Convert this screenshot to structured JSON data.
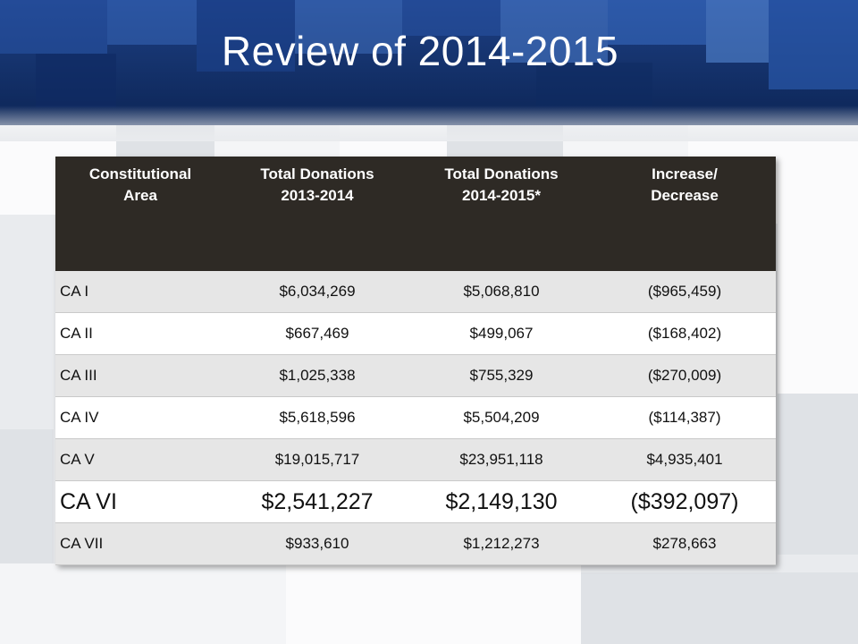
{
  "slide": {
    "title": "Review of 2014-2015"
  },
  "table": {
    "headers": [
      [
        "Constitutional",
        "Area"
      ],
      [
        "Total Donations",
        "2013-2014"
      ],
      [
        "Total Donations",
        "2014-2015*"
      ],
      [
        "Increase/",
        "Decrease"
      ]
    ],
    "rows": [
      {
        "cells": [
          "CA I",
          "$6,034,269",
          "$5,068,810",
          "($965,459)"
        ],
        "emphasis": false
      },
      {
        "cells": [
          "CA II",
          "$667,469",
          "$499,067",
          "($168,402)"
        ],
        "emphasis": false
      },
      {
        "cells": [
          "CA III",
          "$1,025,338",
          "$755,329",
          "($270,009)"
        ],
        "emphasis": false
      },
      {
        "cells": [
          "CA IV",
          "$5,618,596",
          "$5,504,209",
          "($114,387)"
        ],
        "emphasis": false
      },
      {
        "cells": [
          "CA V",
          "$19,015,717",
          "$23,951,118",
          "$4,935,401"
        ],
        "emphasis": false
      },
      {
        "cells": [
          "CA VI",
          "$2,541,227",
          "$2,149,130",
          "($392,097)"
        ],
        "emphasis": true
      },
      {
        "cells": [
          "CA VII",
          "$933,610",
          "$1,212,273",
          "$278,663"
        ],
        "emphasis": false
      }
    ]
  },
  "colors": {
    "banner": "#16346f",
    "header_bg": "#2e2a25",
    "row_shade": "#e6e6e6"
  }
}
